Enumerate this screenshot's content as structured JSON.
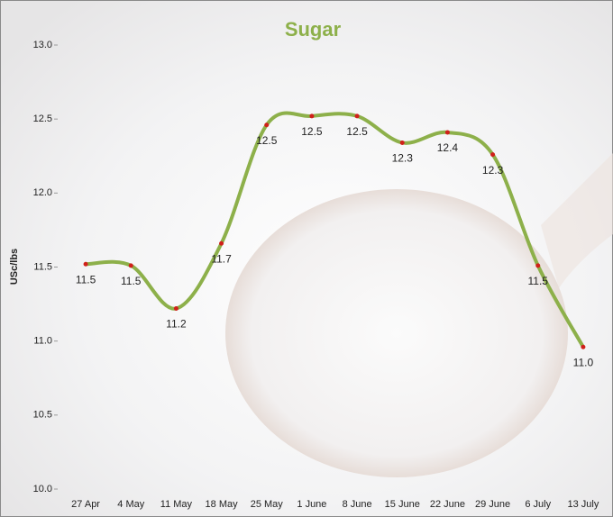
{
  "chart_data": {
    "type": "line",
    "title": "Sugar",
    "y_label": "USc/lbs",
    "categories": [
      "27 Apr",
      "4 May",
      "11 May",
      "18 May",
      "25 May",
      "1 June",
      "8 June",
      "15 June",
      "22 June",
      "29 June",
      "6 July",
      "13 July"
    ],
    "series": [
      {
        "name": "Sugar",
        "color": "#8db04a",
        "marker_color": "#d0201a",
        "values": [
          11.52,
          11.51,
          11.22,
          11.66,
          12.46,
          12.52,
          12.52,
          12.34,
          12.41,
          12.26,
          11.51,
          10.96
        ],
        "value_labels": [
          "11.5",
          "11.5",
          "11.2",
          "11.7",
          "12.5",
          "12.5",
          "12.5",
          "12.3",
          "12.4",
          "12.3",
          "11.5",
          "11.0"
        ]
      }
    ],
    "ylim": [
      10,
      13
    ],
    "yticks": [
      {
        "value": 10,
        "label": "10.0"
      },
      {
        "value": 10.5,
        "label": "10.5"
      },
      {
        "value": 11,
        "label": "11.0"
      },
      {
        "value": 11.5,
        "label": "11.5"
      },
      {
        "value": 12,
        "label": "12.0"
      },
      {
        "value": 12.5,
        "label": "12.5"
      },
      {
        "value": 13,
        "label": "13.0"
      }
    ],
    "grid": false
  }
}
